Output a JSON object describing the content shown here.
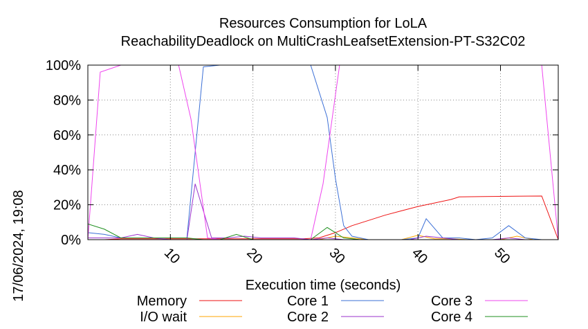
{
  "chart_data": {
    "type": "line",
    "title": "Resources Consumption for LoLA",
    "subtitle": "ReachabilityDeadlock on MultiCrashLeafsetExtension-PT-S32C02",
    "xlabel": "Execution time (seconds)",
    "ylabel": "",
    "side_label": "17/06/2024, 19:08",
    "xlim": [
      0,
      57
    ],
    "ylim": [
      0,
      100
    ],
    "x_ticks": [
      10,
      20,
      30,
      40,
      50
    ],
    "y_ticks": [
      0,
      20,
      40,
      60,
      80,
      100
    ],
    "y_tick_labels": [
      "0%",
      "20%",
      "40%",
      "60%",
      "80%",
      "100%"
    ],
    "grid": true,
    "legend_position": "bottom",
    "series": [
      {
        "name": "Memory",
        "color": "#ee1111",
        "points": [
          [
            0,
            0
          ],
          [
            2,
            0
          ],
          [
            4,
            0.5
          ],
          [
            6,
            0.5
          ],
          [
            8,
            0.5
          ],
          [
            10,
            0.5
          ],
          [
            12,
            0.5
          ],
          [
            14,
            0.5
          ],
          [
            16,
            0.5
          ],
          [
            18,
            0.5
          ],
          [
            20,
            0.5
          ],
          [
            22,
            0.5
          ],
          [
            24,
            0.5
          ],
          [
            26,
            0.5
          ],
          [
            28,
            1
          ],
          [
            30,
            4
          ],
          [
            32,
            8
          ],
          [
            34,
            11
          ],
          [
            36,
            14
          ],
          [
            38,
            16.5
          ],
          [
            40,
            19
          ],
          [
            42,
            21
          ],
          [
            44,
            23
          ],
          [
            45,
            24.5
          ],
          [
            48,
            24.7
          ],
          [
            50,
            24.8
          ],
          [
            52,
            24.9
          ],
          [
            55,
            25
          ],
          [
            57,
            0
          ]
        ]
      },
      {
        "name": "I/O wait",
        "color": "#ffa500",
        "points": [
          [
            0,
            0
          ],
          [
            2,
            0
          ],
          [
            4,
            0
          ],
          [
            6,
            0
          ],
          [
            8,
            0
          ],
          [
            10,
            0
          ],
          [
            12,
            0
          ],
          [
            14,
            0
          ],
          [
            16,
            0
          ],
          [
            18,
            0
          ],
          [
            20,
            0
          ],
          [
            22,
            0
          ],
          [
            24,
            0
          ],
          [
            26,
            0
          ],
          [
            28,
            0
          ],
          [
            30,
            2
          ],
          [
            32,
            1
          ],
          [
            34,
            0
          ],
          [
            36,
            0
          ],
          [
            38,
            0
          ],
          [
            40,
            2.5
          ],
          [
            42,
            0.5
          ],
          [
            44,
            0.5
          ],
          [
            46,
            0
          ],
          [
            48,
            0
          ],
          [
            50,
            0
          ],
          [
            52,
            2
          ],
          [
            54,
            0
          ],
          [
            57,
            0
          ]
        ]
      },
      {
        "name": "Core 1",
        "color": "#3b6fd6",
        "points": [
          [
            0,
            4
          ],
          [
            2,
            3
          ],
          [
            4,
            1
          ],
          [
            6,
            1
          ],
          [
            8,
            1
          ],
          [
            10,
            1
          ],
          [
            12,
            1
          ],
          [
            14,
            99
          ],
          [
            16,
            100
          ],
          [
            18,
            100
          ],
          [
            20,
            100
          ],
          [
            22,
            100
          ],
          [
            24,
            100
          ],
          [
            26,
            100
          ],
          [
            27,
            100
          ],
          [
            29,
            70
          ],
          [
            30,
            35
          ],
          [
            31,
            8
          ],
          [
            32,
            2
          ],
          [
            34,
            0
          ],
          [
            36,
            0
          ],
          [
            38,
            0
          ],
          [
            40,
            1
          ],
          [
            41,
            12
          ],
          [
            43,
            1
          ],
          [
            45,
            1
          ],
          [
            47,
            0
          ],
          [
            49,
            1
          ],
          [
            51,
            8
          ],
          [
            53,
            1
          ],
          [
            55,
            0
          ],
          [
            57,
            0
          ]
        ]
      },
      {
        "name": "Core 2",
        "color": "#9a32cd",
        "points": [
          [
            0,
            1
          ],
          [
            2,
            1
          ],
          [
            4,
            1
          ],
          [
            6,
            3
          ],
          [
            8,
            1
          ],
          [
            10,
            0
          ],
          [
            12,
            0
          ],
          [
            13,
            32
          ],
          [
            15,
            1
          ],
          [
            17,
            1
          ],
          [
            19,
            2
          ],
          [
            21,
            1
          ],
          [
            23,
            1
          ],
          [
            25,
            1
          ],
          [
            27,
            0
          ],
          [
            29,
            1
          ],
          [
            31,
            0
          ],
          [
            33,
            0
          ],
          [
            35,
            0
          ],
          [
            37,
            0
          ],
          [
            39,
            0
          ],
          [
            41,
            2
          ],
          [
            43,
            1
          ],
          [
            45,
            0
          ],
          [
            47,
            0
          ],
          [
            49,
            0
          ],
          [
            51,
            1
          ],
          [
            53,
            0
          ],
          [
            55,
            0
          ],
          [
            57,
            0
          ]
        ]
      },
      {
        "name": "Core 3",
        "color": "#ee44ee",
        "points": [
          [
            0,
            0
          ],
          [
            1.5,
            96
          ],
          [
            4,
            100
          ],
          [
            6,
            100
          ],
          [
            8,
            100
          ],
          [
            10,
            100
          ],
          [
            11,
            100
          ],
          [
            12.5,
            69
          ],
          [
            14.5,
            1
          ],
          [
            16,
            0
          ],
          [
            18,
            0
          ],
          [
            20,
            0
          ],
          [
            22,
            0
          ],
          [
            24,
            0
          ],
          [
            26,
            0
          ],
          [
            27,
            0
          ],
          [
            28.5,
            32
          ],
          [
            30.5,
            100
          ],
          [
            32,
            100
          ],
          [
            35,
            100
          ],
          [
            40,
            100
          ],
          [
            45,
            100
          ],
          [
            50,
            100
          ],
          [
            55,
            100
          ],
          [
            57,
            0
          ]
        ]
      },
      {
        "name": "Core 4",
        "color": "#1f8f1f",
        "points": [
          [
            0,
            9
          ],
          [
            2,
            6
          ],
          [
            4,
            1
          ],
          [
            6,
            1
          ],
          [
            8,
            1
          ],
          [
            10,
            1
          ],
          [
            12,
            1
          ],
          [
            14,
            0
          ],
          [
            16,
            0
          ],
          [
            18,
            3
          ],
          [
            20,
            0
          ],
          [
            22,
            0
          ],
          [
            24,
            0
          ],
          [
            26,
            0
          ],
          [
            27,
            0
          ],
          [
            29,
            7
          ],
          [
            31,
            1
          ],
          [
            33,
            0
          ],
          [
            35,
            0
          ],
          [
            40,
            0
          ],
          [
            45,
            0
          ],
          [
            50,
            0
          ],
          [
            55,
            0
          ],
          [
            57,
            0
          ]
        ]
      }
    ]
  }
}
